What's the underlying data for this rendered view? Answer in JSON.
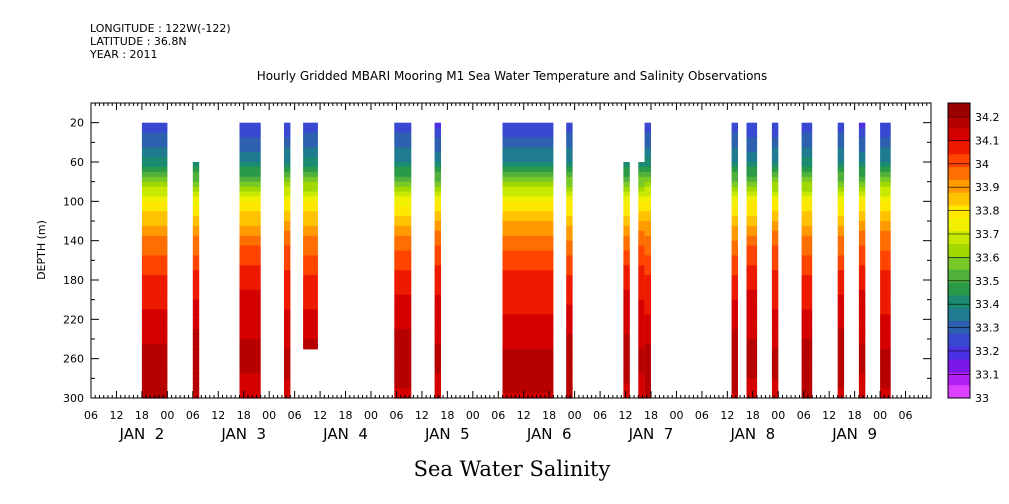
{
  "header": {
    "longitude": "LONGITUDE : 122W(-122)",
    "latitude": "LATITUDE : 36.8N",
    "year": "YEAR : 2011"
  },
  "chart_data": {
    "type": "heatmap",
    "title": "Hourly Gridded MBARI Mooring M1 Sea Water Temperature and Salinity Observations",
    "xlabel": "Sea Water Salinity",
    "ylabel": "DEPTH (m)",
    "xlim_hours": [
      0,
      198
    ],
    "ylim": [
      300,
      0
    ],
    "x_ticks": [
      {
        "h": 0,
        "label": "06"
      },
      {
        "h": 6,
        "label": "12"
      },
      {
        "h": 12,
        "label": "18"
      },
      {
        "h": 18,
        "label": "00"
      },
      {
        "h": 24,
        "label": "06"
      },
      {
        "h": 30,
        "label": "12"
      },
      {
        "h": 36,
        "label": "18"
      },
      {
        "h": 42,
        "label": "00"
      },
      {
        "h": 48,
        "label": "06"
      },
      {
        "h": 54,
        "label": "12"
      },
      {
        "h": 60,
        "label": "18"
      },
      {
        "h": 66,
        "label": "00"
      },
      {
        "h": 72,
        "label": "06"
      },
      {
        "h": 78,
        "label": "12"
      },
      {
        "h": 84,
        "label": "18"
      },
      {
        "h": 90,
        "label": "00"
      },
      {
        "h": 96,
        "label": "06"
      },
      {
        "h": 102,
        "label": "12"
      },
      {
        "h": 108,
        "label": "18"
      },
      {
        "h": 114,
        "label": "00"
      },
      {
        "h": 120,
        "label": "06"
      },
      {
        "h": 126,
        "label": "12"
      },
      {
        "h": 132,
        "label": "18"
      },
      {
        "h": 138,
        "label": "00"
      },
      {
        "h": 144,
        "label": "06"
      },
      {
        "h": 150,
        "label": "12"
      },
      {
        "h": 156,
        "label": "18"
      },
      {
        "h": 162,
        "label": "00"
      },
      {
        "h": 168,
        "label": "06"
      },
      {
        "h": 174,
        "label": "12"
      },
      {
        "h": 180,
        "label": "18"
      },
      {
        "h": 186,
        "label": "00"
      },
      {
        "h": 192,
        "label": "06"
      }
    ],
    "day_labels": [
      {
        "h": 12,
        "label": "JAN  2"
      },
      {
        "h": 36,
        "label": "JAN  3"
      },
      {
        "h": 60,
        "label": "JAN  4"
      },
      {
        "h": 84,
        "label": "JAN  5"
      },
      {
        "h": 108,
        "label": "JAN  6"
      },
      {
        "h": 132,
        "label": "JAN  7"
      },
      {
        "h": 156,
        "label": "JAN  8"
      },
      {
        "h": 180,
        "label": "JAN  9"
      }
    ],
    "y_ticks": [
      20,
      60,
      100,
      140,
      180,
      220,
      260,
      300
    ],
    "colorbar": {
      "levels": [
        "34.2",
        "34.1",
        "34",
        "33.9",
        "33.8",
        "33.7",
        "33.6",
        "33.5",
        "33.4",
        "33.3",
        "33.2",
        "33.1",
        "33"
      ],
      "colors": [
        "#9a0000",
        "#b70000",
        "#d40000",
        "#ee1a00",
        "#ff4400",
        "#ff6e00",
        "#ff9a00",
        "#ffc200",
        "#ffe800",
        "#f0f000",
        "#c8e800",
        "#a0d800",
        "#78c828",
        "#50b03c",
        "#2a9a48",
        "#1a8a70",
        "#207a90",
        "#2e60b0",
        "#3848d0",
        "#4a30e0",
        "#7a18e8",
        "#b020f0",
        "#dc40ff"
      ]
    },
    "profile_depths": [
      20,
      60,
      100,
      140,
      180,
      220,
      260,
      300
    ],
    "profile": [
      33.22,
      33.38,
      33.76,
      33.95,
      34.06,
      34.11,
      34.17,
      34.13
    ],
    "observation_blocks": [
      {
        "start": 12,
        "end": 18,
        "top": 20,
        "bottom": 300
      },
      {
        "start": 24,
        "end": 25.5,
        "top": 60,
        "bottom": 300
      },
      {
        "start": 35,
        "end": 40,
        "top": 20,
        "bottom": 300
      },
      {
        "start": 45.5,
        "end": 47,
        "top": 20,
        "bottom": 300
      },
      {
        "start": 50,
        "end": 53.5,
        "top": 20,
        "bottom": 250
      },
      {
        "start": 71.5,
        "end": 75.5,
        "top": 20,
        "bottom": 300
      },
      {
        "start": 81,
        "end": 82.5,
        "top": 20,
        "bottom": 300
      },
      {
        "start": 97,
        "end": 109,
        "top": 20,
        "bottom": 300
      },
      {
        "start": 112,
        "end": 113.5,
        "top": 20,
        "bottom": 300
      },
      {
        "start": 125.5,
        "end": 127,
        "top": 60,
        "bottom": 300
      },
      {
        "start": 129,
        "end": 130.5,
        "top": 60,
        "bottom": 300
      },
      {
        "start": 130.5,
        "end": 132,
        "top": 20,
        "bottom": 300
      },
      {
        "start": 151,
        "end": 152.5,
        "top": 20,
        "bottom": 300
      },
      {
        "start": 154.5,
        "end": 157,
        "top": 20,
        "bottom": 300
      },
      {
        "start": 160.5,
        "end": 162,
        "top": 20,
        "bottom": 300
      },
      {
        "start": 167.5,
        "end": 170,
        "top": 20,
        "bottom": 300
      },
      {
        "start": 176,
        "end": 177.5,
        "top": 20,
        "bottom": 300
      },
      {
        "start": 181,
        "end": 182.5,
        "top": 20,
        "bottom": 300
      },
      {
        "start": 186,
        "end": 188.5,
        "top": 20,
        "bottom": 300
      }
    ]
  }
}
